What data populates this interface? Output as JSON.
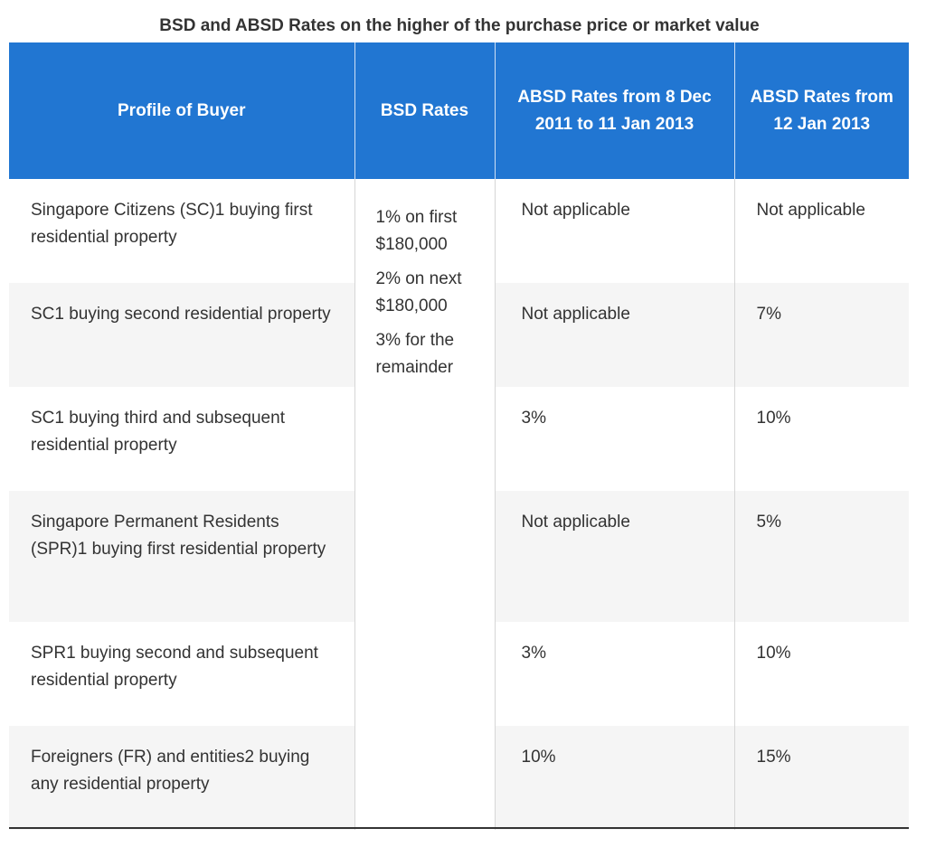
{
  "title": "BSD and ABSD Rates on the higher of the purchase price or market value",
  "headers": {
    "profile": "Profile of Buyer",
    "bsd": "BSD Rates",
    "absd_2011": "ABSD Rates from 8 Dec 2011 to 11 Jan 2013",
    "absd_2013": "ABSD Rates from 12 Jan 2013"
  },
  "bsd_rates": [
    "1% on first $180,000",
    "2% on next $180,000",
    "3% for the remainder"
  ],
  "rows": [
    {
      "profile": "Singapore Citizens (SC)1 buying first residential property",
      "absd_2011": "Not applicable",
      "absd_2013": "Not applicable"
    },
    {
      "profile": "SC1 buying second residential property",
      "absd_2011": "Not applicable",
      "absd_2013": "7%"
    },
    {
      "profile": "SC1 buying third and subsequent residential property",
      "absd_2011": "3%",
      "absd_2013": "10%"
    },
    {
      "profile": "Singapore Permanent Residents (SPR)1 buying first residential property",
      "absd_2011": "Not applicable",
      "absd_2013": "5%"
    },
    {
      "profile": "SPR1 buying second and subsequent residential property",
      "absd_2011": "3%",
      "absd_2013": "10%"
    },
    {
      "profile": "Foreigners (FR) and entities2 buying any residential property",
      "absd_2011": "10%",
      "absd_2013": "15%"
    }
  ]
}
